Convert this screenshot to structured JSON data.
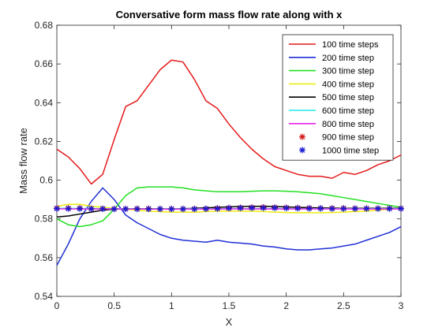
{
  "chart_data": {
    "type": "line",
    "title": "Conversative form mass flow rate along with x",
    "xlabel": "X",
    "ylabel": "Mass flow rate",
    "xlim": [
      0,
      3
    ],
    "ylim": [
      0.54,
      0.68
    ],
    "xticks": [
      "0",
      "0.5",
      "1",
      "1.5",
      "2",
      "2.5",
      "3"
    ],
    "yticks": [
      "0.54",
      "0.56",
      "0.58",
      "0.6",
      "0.62",
      "0.64",
      "0.66",
      "0.68"
    ],
    "grid": false,
    "legend_position": "top-right",
    "series": [
      {
        "name": "100 time steps",
        "color": "#e41a1a",
        "style": "line",
        "x": [
          0,
          0.1,
          0.2,
          0.3,
          0.4,
          0.5,
          0.6,
          0.7,
          0.8,
          0.9,
          1.0,
          1.1,
          1.2,
          1.3,
          1.4,
          1.5,
          1.6,
          1.7,
          1.8,
          1.9,
          2.0,
          2.1,
          2.2,
          2.3,
          2.4,
          2.5,
          2.6,
          2.7,
          2.8,
          2.9,
          3.0
        ],
        "y": [
          0.616,
          0.612,
          0.606,
          0.598,
          0.603,
          0.621,
          0.638,
          0.641,
          0.649,
          0.657,
          0.662,
          0.661,
          0.652,
          0.641,
          0.637,
          0.629,
          0.622,
          0.616,
          0.611,
          0.607,
          0.605,
          0.603,
          0.602,
          0.602,
          0.601,
          0.604,
          0.603,
          0.605,
          0.608,
          0.61,
          0.613
        ]
      },
      {
        "name": "200 time step",
        "color": "#1f2fd6",
        "style": "line",
        "x": [
          0,
          0.1,
          0.2,
          0.3,
          0.4,
          0.5,
          0.6,
          0.7,
          0.8,
          0.9,
          1.0,
          1.1,
          1.2,
          1.3,
          1.4,
          1.5,
          1.6,
          1.7,
          1.8,
          1.9,
          2.0,
          2.1,
          2.2,
          2.3,
          2.4,
          2.5,
          2.6,
          2.7,
          2.8,
          2.9,
          3.0
        ],
        "y": [
          0.556,
          0.567,
          0.58,
          0.589,
          0.596,
          0.59,
          0.582,
          0.578,
          0.575,
          0.572,
          0.57,
          0.569,
          0.5685,
          0.568,
          0.569,
          0.568,
          0.5675,
          0.567,
          0.566,
          0.5655,
          0.5645,
          0.564,
          0.564,
          0.5645,
          0.565,
          0.566,
          0.567,
          0.569,
          0.571,
          0.573,
          0.576
        ]
      },
      {
        "name": "300 time step",
        "color": "#22e022",
        "style": "line",
        "x": [
          0,
          0.1,
          0.2,
          0.3,
          0.4,
          0.5,
          0.6,
          0.7,
          0.8,
          0.9,
          1.0,
          1.1,
          1.2,
          1.3,
          1.4,
          1.5,
          1.6,
          1.7,
          1.8,
          1.9,
          2.0,
          2.1,
          2.2,
          2.3,
          2.4,
          2.5,
          2.6,
          2.7,
          2.8,
          2.9,
          3.0
        ],
        "y": [
          0.58,
          0.577,
          0.576,
          0.577,
          0.579,
          0.585,
          0.592,
          0.596,
          0.5965,
          0.5965,
          0.5965,
          0.596,
          0.595,
          0.5945,
          0.594,
          0.594,
          0.594,
          0.5943,
          0.5945,
          0.5945,
          0.5943,
          0.594,
          0.5935,
          0.593,
          0.592,
          0.591,
          0.59,
          0.589,
          0.588,
          0.587,
          0.586
        ]
      },
      {
        "name": "400 time step",
        "color": "#ecec10",
        "style": "line",
        "x": [
          0,
          0.1,
          0.2,
          0.3,
          0.4,
          0.5,
          0.6,
          0.7,
          0.8,
          0.9,
          1.0,
          1.1,
          1.2,
          1.3,
          1.4,
          1.5,
          1.6,
          1.7,
          1.8,
          1.9,
          2.0,
          2.1,
          2.2,
          2.3,
          2.4,
          2.5,
          2.6,
          2.7,
          2.8,
          2.9,
          3.0
        ],
        "y": [
          0.5865,
          0.5875,
          0.5875,
          0.5865,
          0.586,
          0.5855,
          0.585,
          0.5845,
          0.584,
          0.5838,
          0.5835,
          0.5835,
          0.5835,
          0.5838,
          0.584,
          0.584,
          0.584,
          0.584,
          0.5838,
          0.5835,
          0.5833,
          0.5832,
          0.5832,
          0.5832,
          0.5833,
          0.5835,
          0.5838,
          0.584,
          0.5845,
          0.585,
          0.5855
        ]
      },
      {
        "name": "500 time step",
        "color": "#000000",
        "style": "line",
        "x": [
          0,
          0.1,
          0.2,
          0.3,
          0.4,
          0.5,
          0.6,
          0.7,
          0.8,
          0.9,
          1.0,
          1.1,
          1.2,
          1.3,
          1.4,
          1.5,
          1.6,
          1.7,
          1.8,
          1.9,
          2.0,
          2.1,
          2.2,
          2.3,
          2.4,
          2.5,
          2.6,
          2.7,
          2.8,
          2.9,
          3.0
        ],
        "y": [
          0.581,
          0.5815,
          0.5825,
          0.5835,
          0.5845,
          0.585,
          0.5852,
          0.5853,
          0.5853,
          0.5852,
          0.5852,
          0.5853,
          0.5855,
          0.5857,
          0.586,
          0.5862,
          0.5864,
          0.5865,
          0.5865,
          0.5864,
          0.5862,
          0.586,
          0.5858,
          0.5857,
          0.5856,
          0.5855,
          0.5855,
          0.5855,
          0.5855,
          0.5855,
          0.5855
        ]
      },
      {
        "name": "600 time step",
        "color": "#22e8e8",
        "style": "line",
        "x": [
          0,
          0.5,
          1.0,
          1.5,
          2.0,
          2.5,
          3.0
        ],
        "y": [
          0.5855,
          0.5853,
          0.5852,
          0.5853,
          0.5853,
          0.5853,
          0.5853
        ]
      },
      {
        "name": "800 time step",
        "color": "#e822e8",
        "style": "line",
        "x": [
          0,
          0.5,
          1.0,
          1.5,
          2.0,
          2.5,
          3.0
        ],
        "y": [
          0.5852,
          0.5851,
          0.585,
          0.5851,
          0.5851,
          0.5851,
          0.5851
        ]
      },
      {
        "name": "900 time step",
        "color": "#d41a1a",
        "style": "marker",
        "x": [
          0,
          0.1,
          0.2,
          0.3,
          0.4,
          0.5,
          0.6,
          0.7,
          0.8,
          0.9,
          1.0,
          1.1,
          1.2,
          1.3,
          1.4,
          1.5,
          1.6,
          1.7,
          1.8,
          1.9,
          2.0,
          2.1,
          2.2,
          2.3,
          2.4,
          2.5,
          2.6,
          2.7,
          2.8,
          2.9,
          3.0
        ],
        "y": [
          0.5855,
          0.5855,
          0.5855,
          0.5853,
          0.5853,
          0.5852,
          0.5852,
          0.5853,
          0.5853,
          0.5852,
          0.5852,
          0.5852,
          0.5852,
          0.5853,
          0.5855,
          0.5857,
          0.5858,
          0.5859,
          0.586,
          0.5859,
          0.5858,
          0.5857,
          0.5856,
          0.5855,
          0.5855,
          0.5855,
          0.5854,
          0.5854,
          0.5854,
          0.5854,
          0.5854
        ]
      },
      {
        "name": "1000 time step",
        "color": "#1a1ad4",
        "style": "marker",
        "x": [
          0,
          0.1,
          0.2,
          0.3,
          0.4,
          0.5,
          0.6,
          0.7,
          0.8,
          0.9,
          1.0,
          1.1,
          1.2,
          1.3,
          1.4,
          1.5,
          1.6,
          1.7,
          1.8,
          1.9,
          2.0,
          2.1,
          2.2,
          2.3,
          2.4,
          2.5,
          2.6,
          2.7,
          2.8,
          2.9,
          3.0
        ],
        "y": [
          0.5853,
          0.5853,
          0.5853,
          0.5852,
          0.5852,
          0.5851,
          0.5851,
          0.5851,
          0.5851,
          0.5851,
          0.5851,
          0.5851,
          0.5851,
          0.5852,
          0.5853,
          0.5855,
          0.5856,
          0.5857,
          0.5857,
          0.5857,
          0.5856,
          0.5855,
          0.5854,
          0.5854,
          0.5853,
          0.5853,
          0.5853,
          0.5853,
          0.5853,
          0.5853,
          0.5853
        ]
      }
    ]
  }
}
